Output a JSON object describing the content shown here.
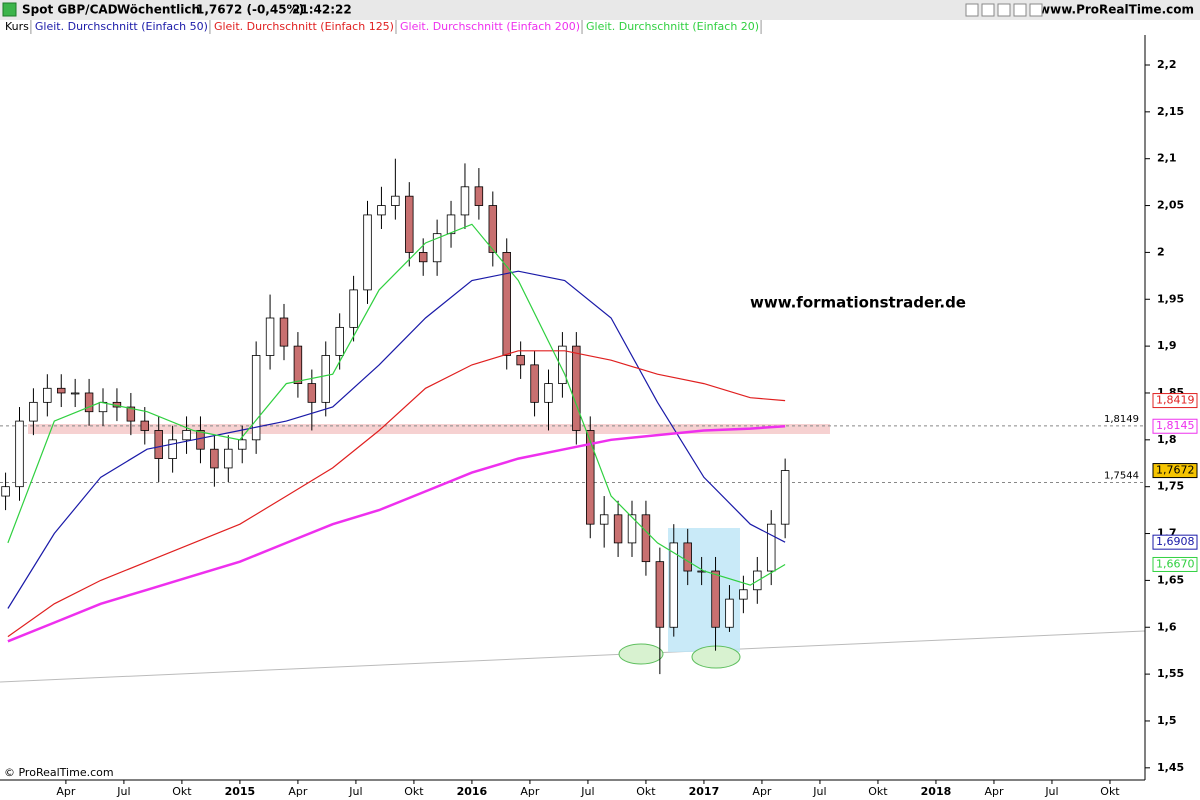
{
  "chart_data": {
    "type": "candlestick",
    "title": "Spot GBP/CAD",
    "period": "Wöchentlich",
    "quote": "1,7672 (-0,45%)",
    "time": "21:42:22",
    "source": "www.ProRealTime.com",
    "copyright": "© ProRealTime.com",
    "annotation": "www.formationstrader.de",
    "name": "Kurs",
    "up_color": "#ffffff",
    "down_color": "#c87070",
    "x": [
      2013.99,
      2014.05,
      2014.11,
      2014.17,
      2014.23,
      2014.29,
      2014.35,
      2014.41,
      2014.47,
      2014.53,
      2014.59,
      2014.65,
      2014.71,
      2014.77,
      2014.83,
      2014.89,
      2014.95,
      2015.01,
      2015.07,
      2015.13,
      2015.19,
      2015.25,
      2015.31,
      2015.37,
      2015.43,
      2015.49,
      2015.55,
      2015.61,
      2015.67,
      2015.73,
      2015.79,
      2015.85,
      2015.91,
      2015.97,
      2016.03,
      2016.09,
      2016.15,
      2016.21,
      2016.27,
      2016.33,
      2016.39,
      2016.45,
      2016.51,
      2016.57,
      2016.63,
      2016.69,
      2016.75,
      2016.81,
      2016.87,
      2016.93,
      2016.99,
      2017.05,
      2017.11,
      2017.17,
      2017.23,
      2017.29,
      2017.35
    ],
    "open": [
      1.74,
      1.75,
      1.82,
      1.84,
      1.855,
      1.85,
      1.85,
      1.83,
      1.84,
      1.835,
      1.82,
      1.81,
      1.78,
      1.8,
      1.81,
      1.79,
      1.77,
      1.79,
      1.8,
      1.89,
      1.93,
      1.9,
      1.86,
      1.84,
      1.89,
      1.92,
      1.96,
      2.04,
      2.05,
      2.06,
      2.0,
      1.99,
      2.02,
      2.04,
      2.07,
      2.05,
      2.0,
      1.89,
      1.88,
      1.84,
      1.86,
      1.9,
      1.81,
      1.71,
      1.72,
      1.69,
      1.72,
      1.67,
      1.6,
      1.69,
      1.66,
      1.66,
      1.6,
      1.63,
      1.64,
      1.66,
      1.71
    ],
    "high": [
      1.765,
      1.835,
      1.855,
      1.87,
      1.87,
      1.865,
      1.865,
      1.855,
      1.855,
      1.85,
      1.835,
      1.825,
      1.815,
      1.825,
      1.825,
      1.805,
      1.805,
      1.815,
      1.905,
      1.955,
      1.945,
      1.915,
      1.875,
      1.905,
      1.935,
      1.975,
      2.055,
      2.07,
      2.1,
      2.075,
      2.015,
      2.035,
      2.055,
      2.095,
      2.09,
      2.065,
      2.015,
      1.905,
      1.895,
      1.875,
      1.915,
      1.915,
      1.825,
      1.74,
      1.735,
      1.735,
      1.735,
      1.685,
      1.71,
      1.705,
      1.675,
      1.675,
      1.645,
      1.655,
      1.675,
      1.725,
      1.78
    ],
    "low": [
      1.725,
      1.735,
      1.805,
      1.825,
      1.835,
      1.835,
      1.815,
      1.815,
      1.82,
      1.805,
      1.795,
      1.755,
      1.765,
      1.785,
      1.775,
      1.75,
      1.755,
      1.775,
      1.785,
      1.875,
      1.885,
      1.845,
      1.81,
      1.825,
      1.875,
      1.905,
      1.945,
      2.025,
      2.035,
      1.985,
      1.975,
      1.975,
      2.005,
      2.025,
      2.035,
      1.985,
      1.875,
      1.865,
      1.825,
      1.81,
      1.845,
      1.795,
      1.695,
      1.685,
      1.675,
      1.675,
      1.655,
      1.55,
      1.59,
      1.645,
      1.645,
      1.575,
      1.595,
      1.615,
      1.625,
      1.645,
      1.695
    ],
    "close": [
      1.75,
      1.82,
      1.84,
      1.855,
      1.85,
      1.85,
      1.83,
      1.84,
      1.835,
      1.82,
      1.81,
      1.78,
      1.8,
      1.81,
      1.79,
      1.77,
      1.79,
      1.8,
      1.89,
      1.93,
      1.9,
      1.86,
      1.84,
      1.89,
      1.92,
      1.96,
      2.04,
      2.05,
      2.06,
      2.0,
      1.99,
      2.02,
      2.04,
      2.07,
      2.05,
      2.0,
      1.89,
      1.88,
      1.84,
      1.86,
      1.9,
      1.81,
      1.71,
      1.72,
      1.69,
      1.72,
      1.67,
      1.6,
      1.69,
      1.66,
      1.66,
      1.6,
      1.63,
      1.64,
      1.66,
      1.71,
      1.7672
    ],
    "close_labels": [
      null,
      null,
      null,
      null,
      null,
      null,
      null,
      null,
      null,
      null,
      null,
      null,
      null,
      null,
      null,
      null,
      null,
      null,
      null,
      null,
      null,
      null,
      null,
      null,
      null,
      null,
      null,
      null,
      null,
      null,
      null,
      null,
      null,
      null,
      null,
      null,
      null,
      null,
      null,
      null,
      null,
      null,
      null,
      null,
      null,
      null,
      null,
      null,
      null,
      null,
      null,
      null,
      null,
      null,
      null,
      null,
      "1,7672"
    ],
    "close_label_color": "#f5c400",
    "series": [
      {
        "name": "Gleit. Durchschnitt (Einfach 50)",
        "color": "#1a1aa8",
        "x": [
          2014.0,
          2014.2,
          2014.4,
          2014.6,
          2014.8,
          2015.0,
          2015.2,
          2015.4,
          2015.6,
          2015.8,
          2016.0,
          2016.2,
          2016.4,
          2016.6,
          2016.8,
          2017.0,
          2017.2,
          2017.35
        ],
        "values": [
          1.62,
          1.7,
          1.76,
          1.79,
          1.8,
          1.81,
          1.82,
          1.835,
          1.88,
          1.93,
          1.97,
          1.98,
          1.97,
          1.93,
          1.84,
          1.76,
          1.71,
          1.6908
        ],
        "value_labels": [
          null,
          null,
          null,
          null,
          null,
          null,
          null,
          null,
          null,
          null,
          null,
          null,
          null,
          null,
          null,
          null,
          null,
          "1,6908"
        ]
      },
      {
        "name": "Gleit. Durchschnitt (Einfach 125)",
        "color": "#e02020",
        "x": [
          2014.0,
          2014.2,
          2014.4,
          2014.6,
          2014.8,
          2015.0,
          2015.2,
          2015.4,
          2015.6,
          2015.8,
          2016.0,
          2016.2,
          2016.4,
          2016.6,
          2016.8,
          2017.0,
          2017.2,
          2017.35
        ],
        "values": [
          1.59,
          1.625,
          1.65,
          1.67,
          1.69,
          1.71,
          1.74,
          1.77,
          1.81,
          1.855,
          1.88,
          1.895,
          1.895,
          1.885,
          1.87,
          1.86,
          1.845,
          1.8419
        ],
        "value_labels": [
          null,
          null,
          null,
          null,
          null,
          null,
          null,
          null,
          null,
          null,
          null,
          null,
          null,
          null,
          null,
          null,
          null,
          "1,8419"
        ]
      },
      {
        "name": "Gleit. Durchschnitt (Einfach 200)",
        "color": "#ee30ee",
        "x": [
          2014.0,
          2014.2,
          2014.4,
          2014.6,
          2014.8,
          2015.0,
          2015.2,
          2015.4,
          2015.6,
          2015.8,
          2016.0,
          2016.2,
          2016.4,
          2016.6,
          2016.8,
          2017.0,
          2017.2,
          2017.35
        ],
        "values": [
          1.585,
          1.605,
          1.625,
          1.64,
          1.655,
          1.67,
          1.69,
          1.71,
          1.725,
          1.745,
          1.765,
          1.78,
          1.79,
          1.8,
          1.805,
          1.81,
          1.812,
          1.8145
        ],
        "value_labels": [
          null,
          null,
          null,
          null,
          null,
          null,
          null,
          null,
          null,
          null,
          null,
          null,
          null,
          null,
          null,
          null,
          null,
          "1,8145"
        ]
      },
      {
        "name": "Gleit. Durchschnitt (Einfach 20)",
        "color": "#30d040",
        "x": [
          2014.0,
          2014.2,
          2014.4,
          2014.6,
          2014.8,
          2015.0,
          2015.2,
          2015.4,
          2015.6,
          2015.8,
          2016.0,
          2016.2,
          2016.4,
          2016.6,
          2016.8,
          2017.0,
          2017.2,
          2017.35
        ],
        "values": [
          1.69,
          1.82,
          1.84,
          1.83,
          1.81,
          1.8,
          1.86,
          1.87,
          1.96,
          2.01,
          2.03,
          1.97,
          1.87,
          1.74,
          1.69,
          1.66,
          1.645,
          1.667
        ],
        "value_labels": [
          null,
          null,
          null,
          null,
          null,
          null,
          null,
          null,
          null,
          null,
          null,
          null,
          null,
          null,
          null,
          null,
          null,
          "1,6670"
        ]
      }
    ],
    "hlines": [
      {
        "value": 1.8149,
        "label": "1,8149"
      },
      {
        "value": 1.7544,
        "label": "1,7544"
      }
    ],
    "xlim": [
      2013.966,
      2018.901
    ],
    "xticks": [
      {
        "value": 2014.25,
        "label": "Apr"
      },
      {
        "value": 2014.5,
        "label": "Jul"
      },
      {
        "value": 2014.75,
        "label": "Okt"
      },
      2015,
      {
        "value": 2015.25,
        "label": "Apr"
      },
      {
        "value": 2015.5,
        "label": "Jul"
      },
      {
        "value": 2015.75,
        "label": "Okt"
      },
      2016,
      {
        "value": 2016.25,
        "label": "Apr"
      },
      {
        "value": 2016.5,
        "label": "Jul"
      },
      {
        "value": 2016.75,
        "label": "Okt"
      },
      2017,
      {
        "value": 2017.25,
        "label": "Apr"
      },
      {
        "value": 2017.5,
        "label": "Jul"
      },
      {
        "value": 2017.75,
        "label": "Okt"
      },
      2018,
      {
        "value": 2018.25,
        "label": "Apr"
      },
      {
        "value": 2018.5,
        "label": "Jul"
      },
      {
        "value": 2018.75,
        "label": "Okt"
      }
    ],
    "ylim": [
      1.437,
      2.232
    ],
    "yticks": [
      {
        "value": 1.45,
        "label": "1,45"
      },
      {
        "value": 1.5,
        "label": "1,5"
      },
      {
        "value": 1.55,
        "label": "1,55"
      },
      {
        "value": 1.6,
        "label": "1,6"
      },
      {
        "value": 1.65,
        "label": "1,65"
      },
      {
        "value": 1.7,
        "label": "1,7"
      },
      {
        "value": 1.75,
        "label": "1,75"
      },
      {
        "value": 1.8,
        "label": "1,8"
      },
      {
        "value": 1.85,
        "label": "1,85"
      },
      {
        "value": 1.9,
        "label": "1,9"
      },
      {
        "value": 1.95,
        "label": "1,95"
      },
      2,
      {
        "value": 2.05,
        "label": "2,05"
      },
      {
        "value": 2.1,
        "label": "2,1"
      },
      {
        "value": 2.15,
        "label": "2,15"
      },
      {
        "value": 2.2,
        "label": "2,2"
      }
    ],
    "grid": false
  }
}
